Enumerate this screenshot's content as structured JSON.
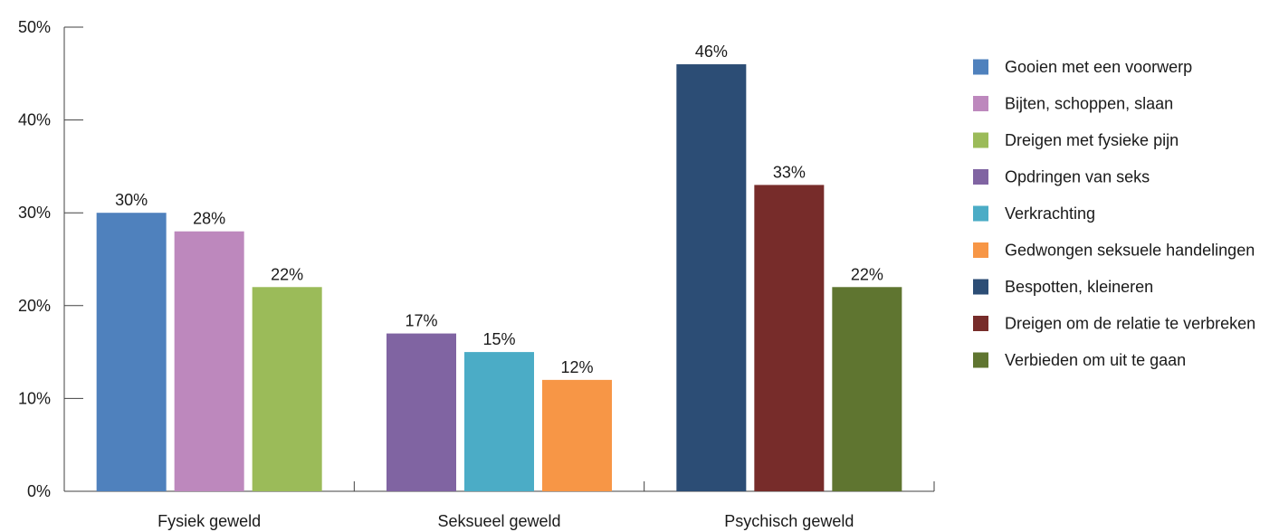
{
  "chart_data": {
    "type": "bar",
    "categories": [
      "Fysiek geweld",
      "Seksueel geweld",
      "Psychisch geweld"
    ],
    "bars": [
      {
        "category": "Fysiek geweld",
        "label": "Gooien met een voorwerp",
        "value": 30,
        "value_label": "30%",
        "color": "#4f81bd"
      },
      {
        "category": "Fysiek geweld",
        "label": "Bijten, schoppen, slaan",
        "value": 28,
        "value_label": "28%",
        "color": "#bd88bd"
      },
      {
        "category": "Fysiek geweld",
        "label": "Dreigen met fysieke pijn",
        "value": 22,
        "value_label": "22%",
        "color": "#9bbb59"
      },
      {
        "category": "Seksueel geweld",
        "label": "Opdringen van seks",
        "value": 17,
        "value_label": "17%",
        "color": "#8064a2"
      },
      {
        "category": "Seksueel geweld",
        "label": "Verkrachting",
        "value": 15,
        "value_label": "15%",
        "color": "#4bacc6"
      },
      {
        "category": "Seksueel geweld",
        "label": "Gedwongen seksuele handelingen",
        "value": 12,
        "value_label": "12%",
        "color": "#f79646"
      },
      {
        "category": "Psychisch geweld",
        "label": "Bespotten, kleineren",
        "value": 46,
        "value_label": "46%",
        "color": "#2c4d75"
      },
      {
        "category": "Psychisch geweld",
        "label": "Dreigen om de relatie te verbreken",
        "value": 33,
        "value_label": "33%",
        "color": "#772c2a"
      },
      {
        "category": "Psychisch geweld",
        "label": "Verbieden om uit te gaan",
        "value": 22,
        "value_label": "22%",
        "color": "#5f7530"
      }
    ],
    "legend": [
      {
        "label": "Gooien met een voorwerp",
        "color": "#4f81bd"
      },
      {
        "label": "Bijten, schoppen, slaan",
        "color": "#bd88bd"
      },
      {
        "label": "Dreigen met fysieke pijn",
        "color": "#9bbb59"
      },
      {
        "label": "Opdringen van seks",
        "color": "#8064a2"
      },
      {
        "label": "Verkrachting",
        "color": "#4bacc6"
      },
      {
        "label": "Gedwongen seksuele handelingen",
        "color": "#f79646"
      },
      {
        "label": "Bespotten, kleineren",
        "color": "#2c4d75"
      },
      {
        "label": "Dreigen om de relatie te verbreken",
        "color": "#772c2a"
      },
      {
        "label": "Verbieden om uit te gaan",
        "color": "#5f7530"
      }
    ],
    "yticks": [
      {
        "value": 0,
        "label": "0%"
      },
      {
        "value": 10,
        "label": "10%"
      },
      {
        "value": 20,
        "label": "20%"
      },
      {
        "value": 30,
        "label": "30%"
      },
      {
        "value": 40,
        "label": "40%"
      },
      {
        "value": 50,
        "label": "50%"
      }
    ],
    "ylim": [
      0,
      50
    ],
    "grid": false,
    "legend_position": "right",
    "title": "",
    "xlabel": "",
    "ylabel": ""
  }
}
